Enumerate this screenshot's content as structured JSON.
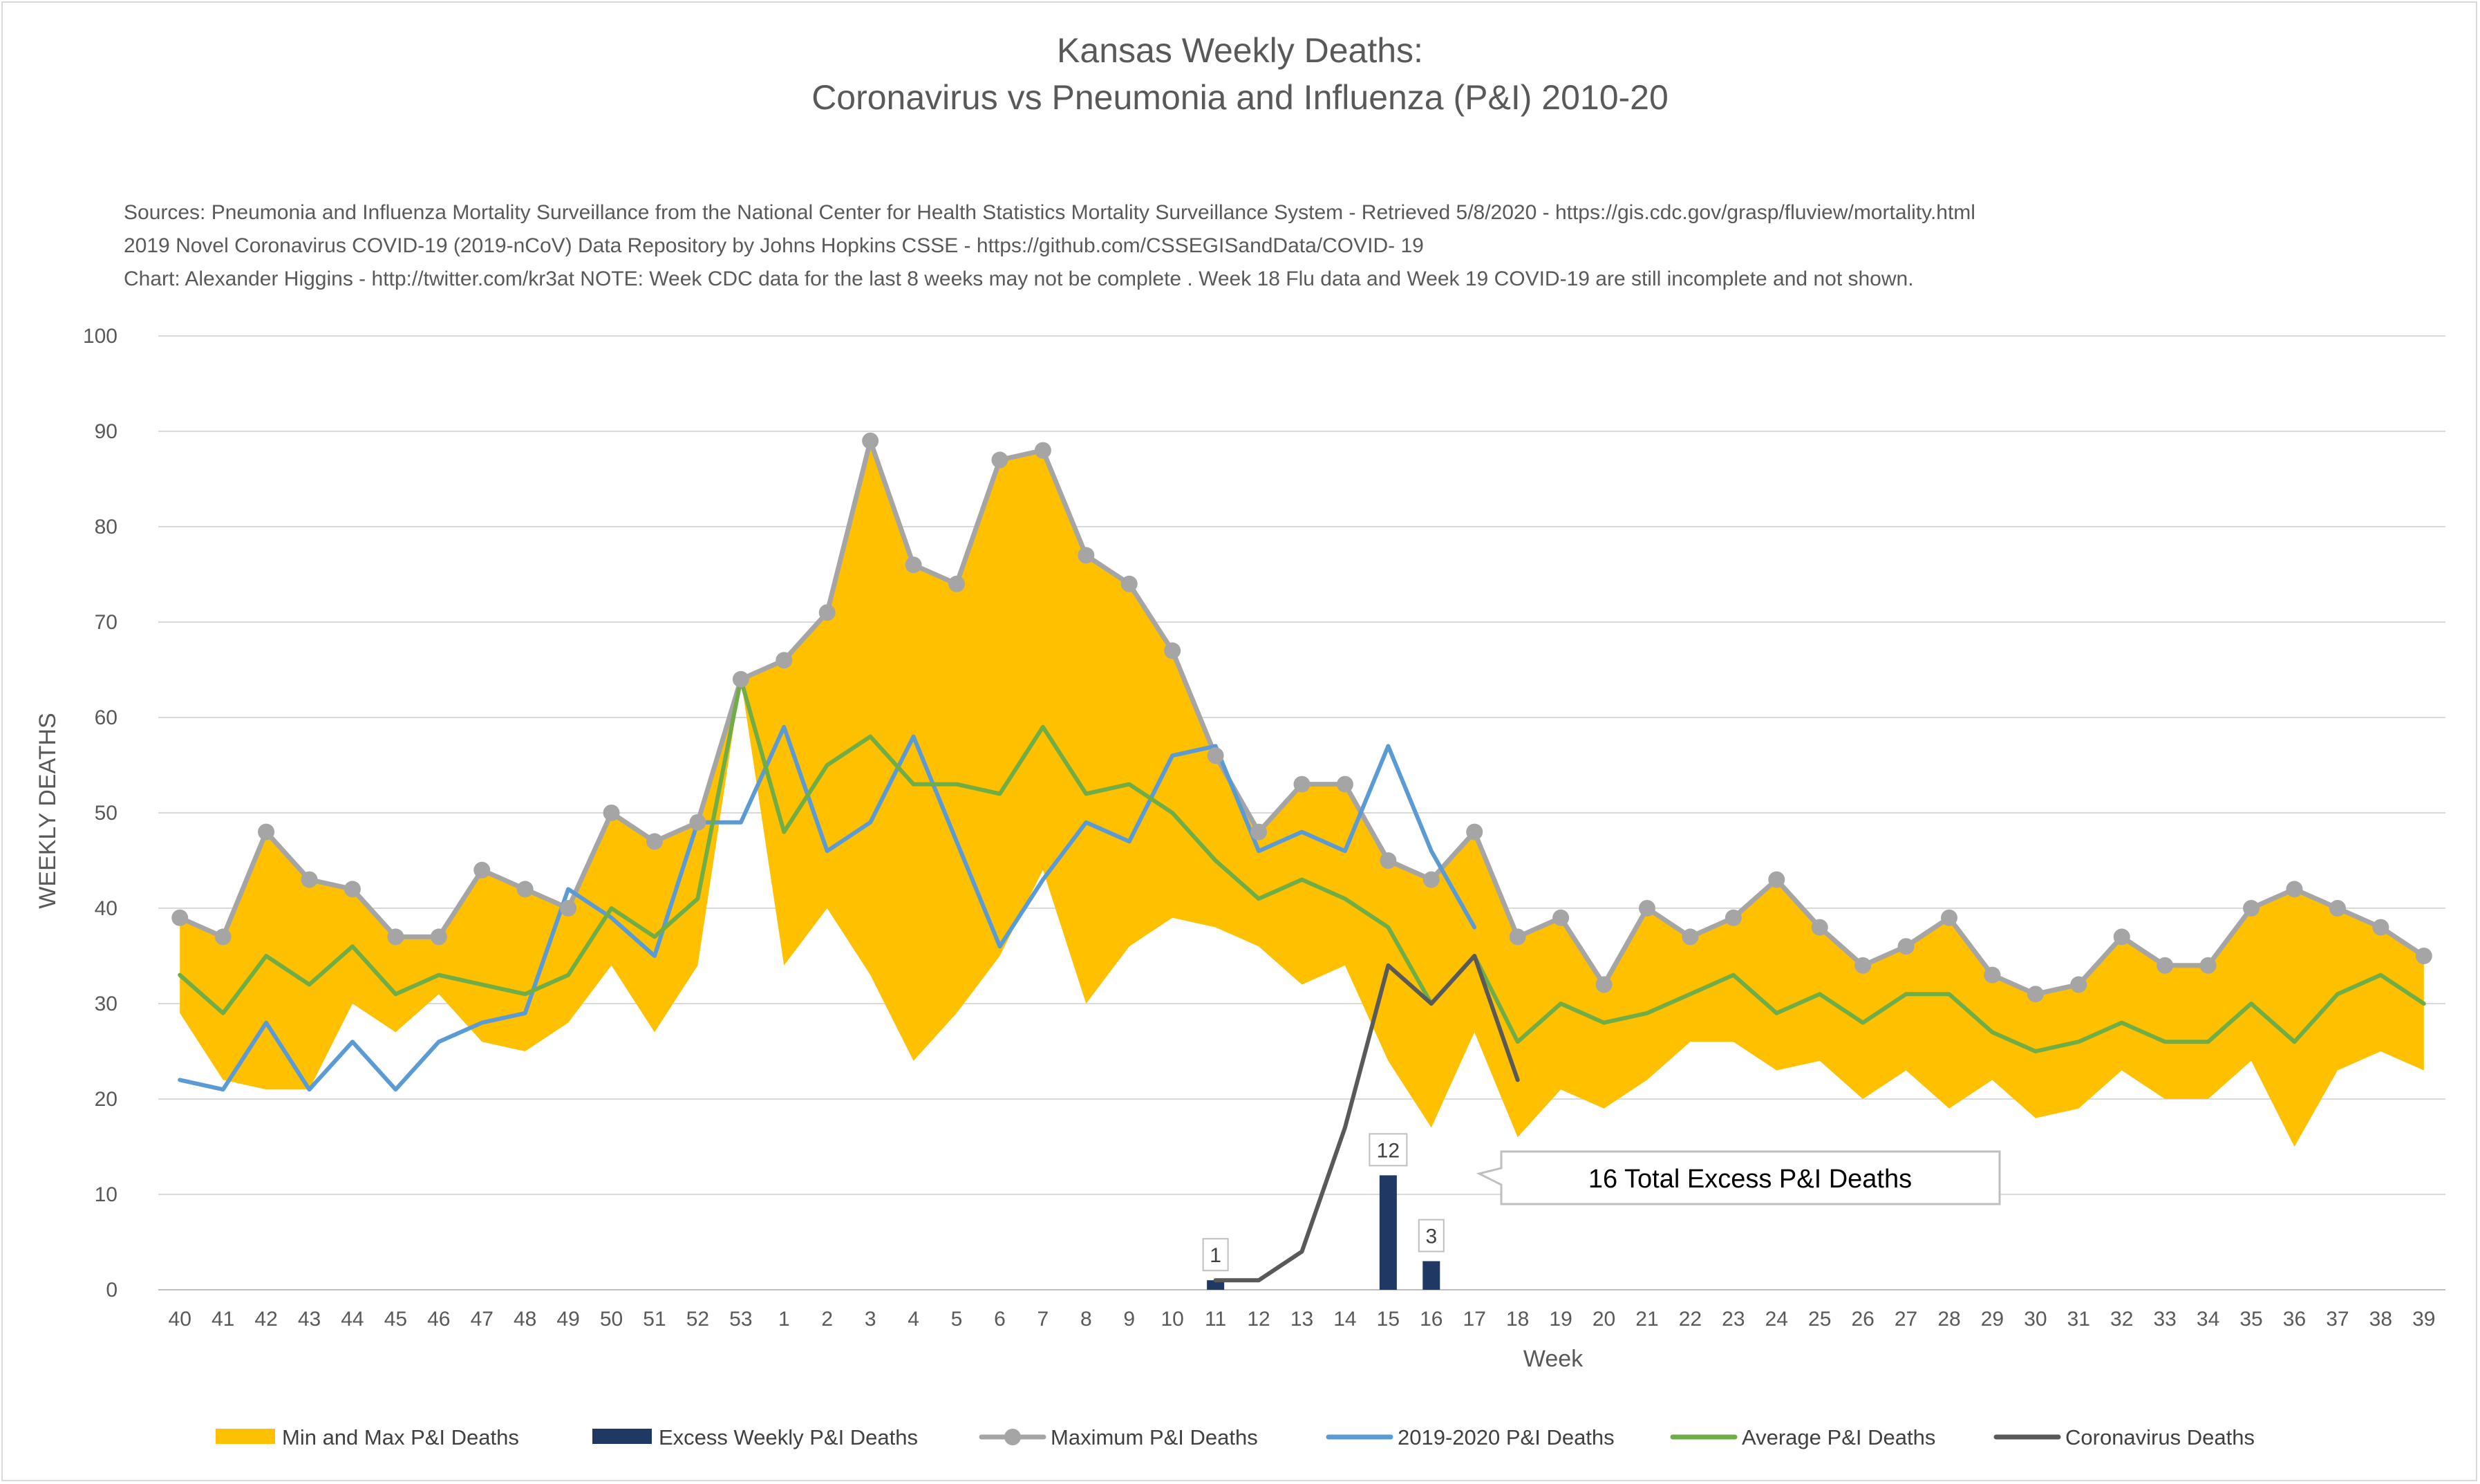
{
  "title": {
    "line1": "Kansas Weekly Deaths:",
    "line2": "Coronavirus vs Pneumonia and Influenza (P&I) 2010-20"
  },
  "notes": [
    "Sources: Pneumonia and Influenza Mortality Surveillance from the National Center for Health Statistics Mortality Surveillance System - Retrieved 5/8/2020 - https://gis.cdc.gov/grasp/fluview/mortality.html",
    "2019 Novel Coronavirus COVID-19 (2019-nCoV) Data Repository by Johns Hopkins CSSE - https://github.com/CSSEGISandData/COVID- 19",
    "Chart: Alexander Higgins - http://twitter.com/kr3at   NOTE: Week CDC data for the last 8 weeks may not be complete . Week 18 Flu data and Week 19 COVID-19 are still incomplete and not shown."
  ],
  "callout": "16 Total Excess P&I Deaths",
  "colors": {
    "band": "#ffc000",
    "excess": "#203864",
    "maximum": "#a5a5a5",
    "current": "#5b9bd5",
    "average": "#70ad47",
    "corona": "#595959",
    "grid": "#d9d9d9",
    "text": "#595959"
  },
  "chart_data": {
    "type": "line",
    "xlabel": "Week",
    "ylabel": "WEEKLY DEATHS",
    "ylim": [
      0,
      100
    ],
    "yticks": [
      0,
      10,
      20,
      30,
      40,
      50,
      60,
      70,
      80,
      90,
      100
    ],
    "grid": true,
    "legend_position": "bottom",
    "categories": [
      "40",
      "41",
      "42",
      "43",
      "44",
      "45",
      "46",
      "47",
      "48",
      "49",
      "50",
      "51",
      "52",
      "53",
      "1",
      "2",
      "3",
      "4",
      "5",
      "6",
      "7",
      "8",
      "9",
      "10",
      "11",
      "12",
      "13",
      "14",
      "15",
      "16",
      "17",
      "18",
      "19",
      "20",
      "21",
      "22",
      "23",
      "24",
      "25",
      "26",
      "27",
      "28",
      "29",
      "30",
      "31",
      "32",
      "33",
      "34",
      "35",
      "36",
      "37",
      "38",
      "39"
    ],
    "series": [
      {
        "name": "Min and Max P&I Deaths",
        "kind": "band",
        "values": [
          29,
          22,
          21,
          21,
          30,
          27,
          31,
          26,
          25,
          28,
          34,
          27,
          34,
          64,
          34,
          40,
          33,
          24,
          29,
          35,
          44,
          30,
          36,
          39,
          38,
          36,
          32,
          34,
          24,
          17,
          27,
          16,
          21,
          19,
          22,
          26,
          26,
          23,
          24,
          20,
          23,
          19,
          22,
          18,
          19,
          23,
          20,
          20,
          24,
          15,
          23,
          25,
          23
        ]
      },
      {
        "name": "Excess Weekly P&I Deaths",
        "kind": "bar",
        "values": [
          null,
          null,
          null,
          null,
          null,
          null,
          null,
          null,
          null,
          null,
          null,
          null,
          null,
          null,
          null,
          null,
          null,
          null,
          null,
          null,
          null,
          null,
          null,
          null,
          1,
          null,
          null,
          null,
          12,
          3,
          null,
          null,
          null,
          null,
          null,
          null,
          null,
          null,
          null,
          null,
          null,
          null,
          null,
          null,
          null,
          null,
          null,
          null,
          null,
          null,
          null,
          null,
          null
        ],
        "labels": [
          "1",
          "12",
          "3"
        ]
      },
      {
        "name": "Maximum P&I Deaths",
        "kind": "line-marker",
        "values": [
          39,
          37,
          48,
          43,
          42,
          37,
          37,
          44,
          42,
          40,
          50,
          47,
          49,
          64,
          66,
          71,
          89,
          76,
          74,
          87,
          88,
          77,
          74,
          67,
          56,
          48,
          53,
          53,
          45,
          43,
          48,
          37,
          39,
          32,
          40,
          37,
          39,
          43,
          38,
          34,
          36,
          39,
          33,
          31,
          32,
          37,
          34,
          34,
          40,
          42,
          40,
          38,
          35
        ]
      },
      {
        "name": "2019-2020 P&I Deaths",
        "kind": "line",
        "values": [
          22,
          21,
          28,
          21,
          26,
          21,
          26,
          28,
          29,
          42,
          39,
          35,
          49,
          49,
          59,
          46,
          49,
          58,
          47,
          36,
          43,
          49,
          47,
          56,
          57,
          46,
          48,
          46,
          57,
          46,
          38,
          null,
          null,
          null,
          null,
          null,
          null,
          null,
          null,
          null,
          null,
          null,
          null,
          null,
          null,
          null,
          null,
          null,
          null,
          null,
          null,
          null,
          null
        ]
      },
      {
        "name": "Average P&I Deaths",
        "kind": "line",
        "values": [
          33,
          29,
          35,
          32,
          36,
          31,
          33,
          32,
          31,
          33,
          40,
          37,
          41,
          64,
          48,
          55,
          58,
          53,
          53,
          52,
          59,
          52,
          53,
          50,
          45,
          41,
          43,
          41,
          38,
          30,
          35,
          26,
          30,
          28,
          29,
          31,
          33,
          29,
          31,
          28,
          31,
          31,
          27,
          25,
          26,
          28,
          26,
          26,
          30,
          26,
          31,
          33,
          30
        ]
      },
      {
        "name": "Coronavirus Deaths",
        "kind": "line",
        "values": [
          null,
          null,
          null,
          null,
          null,
          null,
          null,
          null,
          null,
          null,
          null,
          null,
          null,
          null,
          null,
          null,
          null,
          null,
          null,
          null,
          null,
          null,
          null,
          null,
          1,
          1,
          4,
          17,
          34,
          30,
          35,
          22,
          null,
          null,
          null,
          null,
          null,
          null,
          null,
          null,
          null,
          null,
          null,
          null,
          null,
          null,
          null,
          null,
          null,
          null,
          null,
          null,
          null
        ]
      }
    ]
  }
}
